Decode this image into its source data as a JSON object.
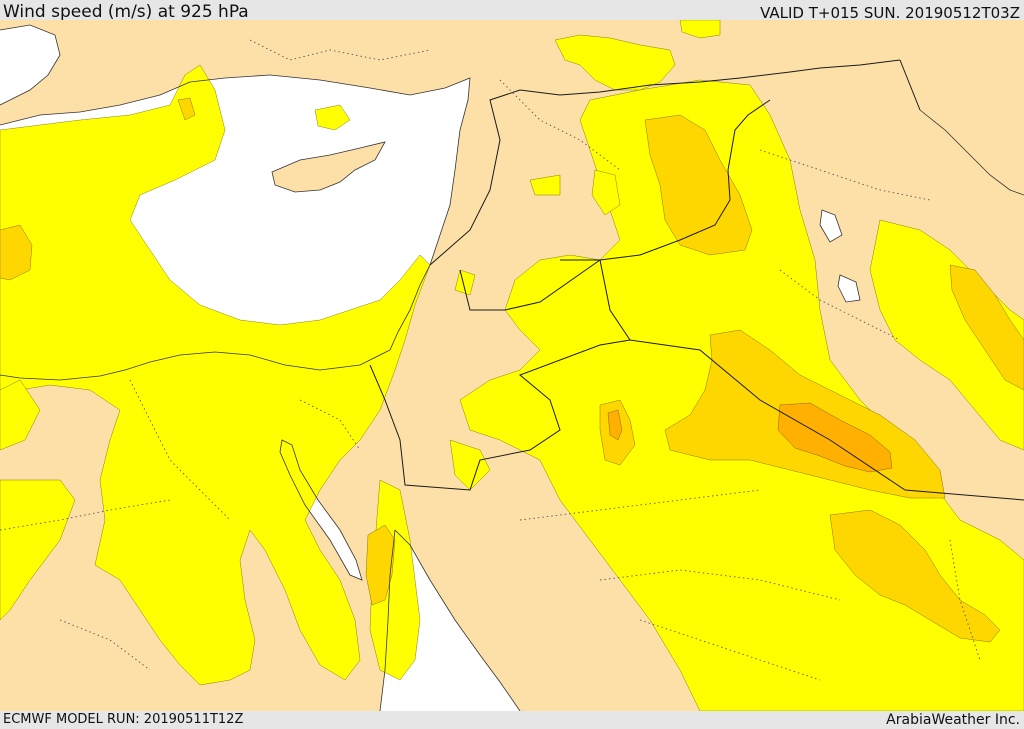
{
  "header": {
    "title": "Wind speed (m/s) at 925 hPa",
    "valid_time": "VALID T+015 SUN. 20190512T03Z"
  },
  "footer": {
    "model_run": "ECMWF MODEL RUN: 20190511T12Z",
    "credit": "ArabiaWeather Inc."
  },
  "colors": {
    "land": "#fde0a8",
    "sea": "#ffffff",
    "wind_low": "#ffff00",
    "wind_mid": "#ffd700",
    "wind_high": "#ffb000",
    "coast": "#333333",
    "border": "#1a1a1a"
  }
}
